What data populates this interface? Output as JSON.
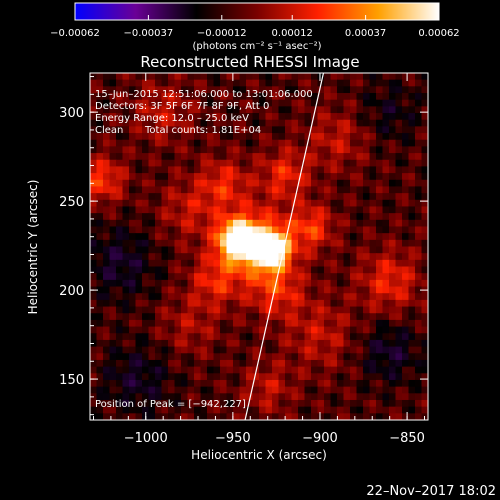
{
  "chart_data": {
    "type": "heatmap",
    "title": "Reconstructed RHESSI Image",
    "xlabel": "Heliocentric X (arcsec)",
    "ylabel": "Heliocentric Y (arcsec)",
    "xlim": [
      -1032,
      -838
    ],
    "ylim": [
      127,
      322
    ],
    "x_ticks": [
      -1000,
      -950,
      -900,
      -850
    ],
    "x_tick_labels": [
      "−1000",
      "−950",
      "−900",
      "−850"
    ],
    "y_ticks": [
      150,
      200,
      250,
      300
    ],
    "y_tick_labels": [
      "150",
      "200",
      "250",
      "300"
    ],
    "colorbar": {
      "range": [
        -0.00062,
        0.00062
      ],
      "ticks": [
        -0.00062,
        -0.00037,
        -0.00012,
        0.00012,
        0.00037,
        0.00062
      ],
      "tick_labels": [
        "−0.00062",
        "−0.00037",
        "−0.00012",
        "0.00012",
        "0.00037",
        "0.00062"
      ],
      "unit_label": "(photons cm⁻² s⁻¹ asec⁻²)",
      "colors": [
        "#0000ff",
        "#6a0096",
        "#000000",
        "#7a0000",
        "#ff2000",
        "#ffa000",
        "#ffffff"
      ]
    },
    "annotations": {
      "time_range": "15–Jun–2015 12:51:06.000 to 13:01:06.000",
      "detectors": "Detectors: 3F 5F 6F 7F 8F 9F, Att 0",
      "energy": "Energy Range: 12.0 – 25.0 keV",
      "clean_label": "Clean",
      "total_counts": "Total counts: 1.81E+04",
      "peak": "Position of Peak = [−942,227]"
    },
    "peak_position": [
      -942,
      227
    ],
    "limb_line": [
      [
        -943,
        127
      ],
      [
        -898,
        322
      ]
    ],
    "sources": [
      {
        "x": -947,
        "y": 228,
        "amp": 1.0,
        "sigma": 7
      },
      {
        "x": -928,
        "y": 223,
        "amp": 0.9,
        "sigma": 7
      },
      {
        "x": -938,
        "y": 226,
        "amp": 0.5,
        "sigma": 14
      },
      {
        "x": -905,
        "y": 235,
        "amp": 0.35,
        "sigma": 9
      },
      {
        "x": -925,
        "y": 200,
        "amp": 0.3,
        "sigma": 11
      },
      {
        "x": -960,
        "y": 205,
        "amp": 0.28,
        "sigma": 10
      },
      {
        "x": -955,
        "y": 260,
        "amp": 0.28,
        "sigma": 10
      },
      {
        "x": -920,
        "y": 265,
        "amp": 0.3,
        "sigma": 10
      },
      {
        "x": -975,
        "y": 245,
        "amp": 0.2,
        "sigma": 12
      },
      {
        "x": -890,
        "y": 285,
        "amp": 0.2,
        "sigma": 12
      },
      {
        "x": -860,
        "y": 205,
        "amp": 0.3,
        "sigma": 12
      },
      {
        "x": -900,
        "y": 175,
        "amp": 0.2,
        "sigma": 14
      },
      {
        "x": -975,
        "y": 180,
        "amp": 0.16,
        "sigma": 12
      },
      {
        "x": -1025,
        "y": 262,
        "amp": 0.35,
        "sigma": 9
      },
      {
        "x": -990,
        "y": 300,
        "amp": 0.2,
        "sigma": 12
      },
      {
        "x": -930,
        "y": 145,
        "amp": 0.2,
        "sigma": 10
      },
      {
        "x": -1005,
        "y": 150,
        "amp": -0.2,
        "sigma": 14
      },
      {
        "x": -1015,
        "y": 215,
        "amp": -0.22,
        "sigma": 14
      },
      {
        "x": -860,
        "y": 165,
        "amp": -0.22,
        "sigma": 12
      },
      {
        "x": -860,
        "y": 300,
        "amp": -0.15,
        "sigma": 12
      }
    ]
  },
  "footer": {
    "date_stamp": "22–Nov–2017 18:02"
  }
}
